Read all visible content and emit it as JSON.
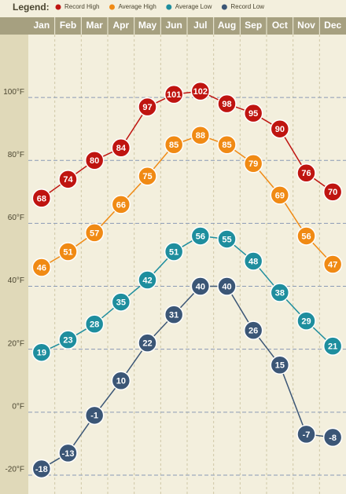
{
  "chart_data": {
    "type": "line",
    "legend_title": "Legend:",
    "categories": [
      "Jan",
      "Feb",
      "Mar",
      "Apr",
      "May",
      "Jun",
      "Jul",
      "Aug",
      "Sep",
      "Oct",
      "Nov",
      "Dec"
    ],
    "series": [
      {
        "name": "Record High",
        "color": "#bf1410",
        "values": [
          68,
          74,
          80,
          84,
          97,
          101,
          102,
          98,
          95,
          90,
          76,
          70
        ]
      },
      {
        "name": "Average High",
        "color": "#f08a14",
        "values": [
          46,
          51,
          57,
          66,
          75,
          85,
          88,
          85,
          79,
          69,
          56,
          47
        ]
      },
      {
        "name": "Average Low",
        "color": "#1e8e9e",
        "values": [
          19,
          23,
          28,
          35,
          42,
          51,
          56,
          55,
          48,
          38,
          29,
          21
        ]
      },
      {
        "name": "Record Low",
        "color": "#3b5676",
        "values": [
          -18,
          -13,
          -1,
          10,
          22,
          31,
          40,
          40,
          26,
          15,
          -7,
          -8
        ]
      }
    ],
    "ylim": [
      -26,
      120
    ],
    "yticks": [
      {
        "value": -20,
        "label": "-20°F"
      },
      {
        "value": 0,
        "label": "0°F"
      },
      {
        "value": 20,
        "label": "20°F"
      },
      {
        "value": 40,
        "label": "40°F"
      },
      {
        "value": 60,
        "label": "60°F"
      },
      {
        "value": 80,
        "label": "80°F"
      },
      {
        "value": 100,
        "label": "100°F"
      }
    ],
    "grid": true
  }
}
